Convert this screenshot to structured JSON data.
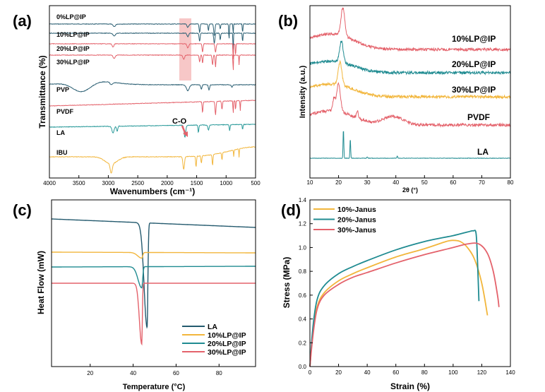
{
  "chart_data": [
    {
      "panel": "(a)",
      "type": "line",
      "xlabel": "Wavenumbers (cm⁻¹)",
      "ylabel": "Transmittance (%)",
      "xlim": [
        4000,
        500
      ],
      "x_ticks": [
        "4000",
        "3500",
        "3000",
        "2500",
        "2000",
        "1500",
        "1000",
        "500"
      ],
      "highlight_band": [
        1800,
        1580
      ],
      "annotation": "C-O",
      "series": [
        {
          "name": "0%LP@IP",
          "color": "#2b5f73"
        },
        {
          "name": "10%LP@IP",
          "color": "#2b5f73"
        },
        {
          "name": "20%LP@IP",
          "color": "#e4626b"
        },
        {
          "name": "30%LP@IP",
          "color": "#e4626b"
        },
        {
          "name": "PVP",
          "color": "#2b5f73"
        },
        {
          "name": "PVDF",
          "color": "#e4626b"
        },
        {
          "name": "LA",
          "color": "#2a9a9a"
        },
        {
          "name": "IBU",
          "color": "#f2b63c"
        }
      ]
    },
    {
      "panel": "(b)",
      "type": "line",
      "xlabel": "2θ (°)",
      "ylabel": "Intensity (a.u.)",
      "xlim": [
        10,
        80
      ],
      "x_ticks": [
        "10",
        "20",
        "30",
        "40",
        "50",
        "60",
        "70",
        "80"
      ],
      "series": [
        {
          "name": "10%LP@IP",
          "color": "#e4626b",
          "main_peak_2theta": 21.5
        },
        {
          "name": "20%LP@IP",
          "color": "#1f8b91",
          "main_peak_2theta": 21
        },
        {
          "name": "30%LP@IP",
          "color": "#f2b63c",
          "main_peak_2theta": 20.5
        },
        {
          "name": "PVDF",
          "color": "#e4626b",
          "main_peak_2theta": 20
        },
        {
          "name": "LA",
          "color": "#1f8b91",
          "main_peak_2theta": 21.7
        }
      ]
    },
    {
      "panel": "(c)",
      "type": "line",
      "xlabel": "Temperature (°C)",
      "ylabel": "Heat Flow (mW)",
      "xlim": [
        2,
        97
      ],
      "x_ticks": [
        "20",
        "40",
        "60",
        "80"
      ],
      "series": [
        {
          "name": "LA",
          "color": "#245a6e",
          "melting_peak_C": 46.5
        },
        {
          "name": "10%LP@IP",
          "color": "#f2b63c",
          "melting_peak_C": 44
        },
        {
          "name": "20%LP@IP",
          "color": "#1f8b91",
          "melting_peak_C": 44
        },
        {
          "name": "30%LP@IP",
          "color": "#e4626b",
          "melting_peak_C": 44
        }
      ]
    },
    {
      "panel": "(d)",
      "type": "line",
      "xlabel": "Strain (%)",
      "ylabel": "Stress (MPa)",
      "xlim": [
        0,
        140
      ],
      "ylim": [
        0.0,
        1.4
      ],
      "x_ticks": [
        "0",
        "20",
        "40",
        "60",
        "80",
        "100",
        "120",
        "140"
      ],
      "y_ticks": [
        "0.0",
        "0.2",
        "0.4",
        "0.6",
        "0.8",
        "1.0",
        "1.2",
        "1.4"
      ],
      "legend_position": "top-left",
      "series": [
        {
          "name": "10%-Janus",
          "color": "#f2b63c",
          "x": [
            0,
            2,
            5,
            10,
            20,
            30,
            40,
            60,
            80,
            95,
            100,
            105,
            110,
            115,
            120,
            124
          ],
          "y": [
            0.0,
            0.28,
            0.5,
            0.62,
            0.72,
            0.78,
            0.83,
            0.92,
            0.99,
            1.05,
            1.06,
            1.05,
            1.0,
            0.9,
            0.7,
            0.43
          ]
        },
        {
          "name": "20%-Janus",
          "color": "#1f8b91",
          "x": [
            0,
            2,
            5,
            10,
            20,
            30,
            40,
            60,
            80,
            100,
            110,
            114,
            116,
            117,
            118
          ],
          "y": [
            0.0,
            0.32,
            0.56,
            0.68,
            0.78,
            0.84,
            0.89,
            0.98,
            1.05,
            1.1,
            1.13,
            1.14,
            1.12,
            0.9,
            0.55
          ]
        },
        {
          "name": "30%-Janus",
          "color": "#e4626b",
          "x": [
            0,
            2,
            5,
            10,
            20,
            30,
            40,
            60,
            80,
            100,
            110,
            118,
            124,
            128,
            131,
            132
          ],
          "y": [
            0.0,
            0.25,
            0.48,
            0.6,
            0.69,
            0.75,
            0.79,
            0.87,
            0.94,
            1.0,
            1.03,
            1.03,
            0.95,
            0.8,
            0.6,
            0.5
          ]
        }
      ]
    }
  ]
}
